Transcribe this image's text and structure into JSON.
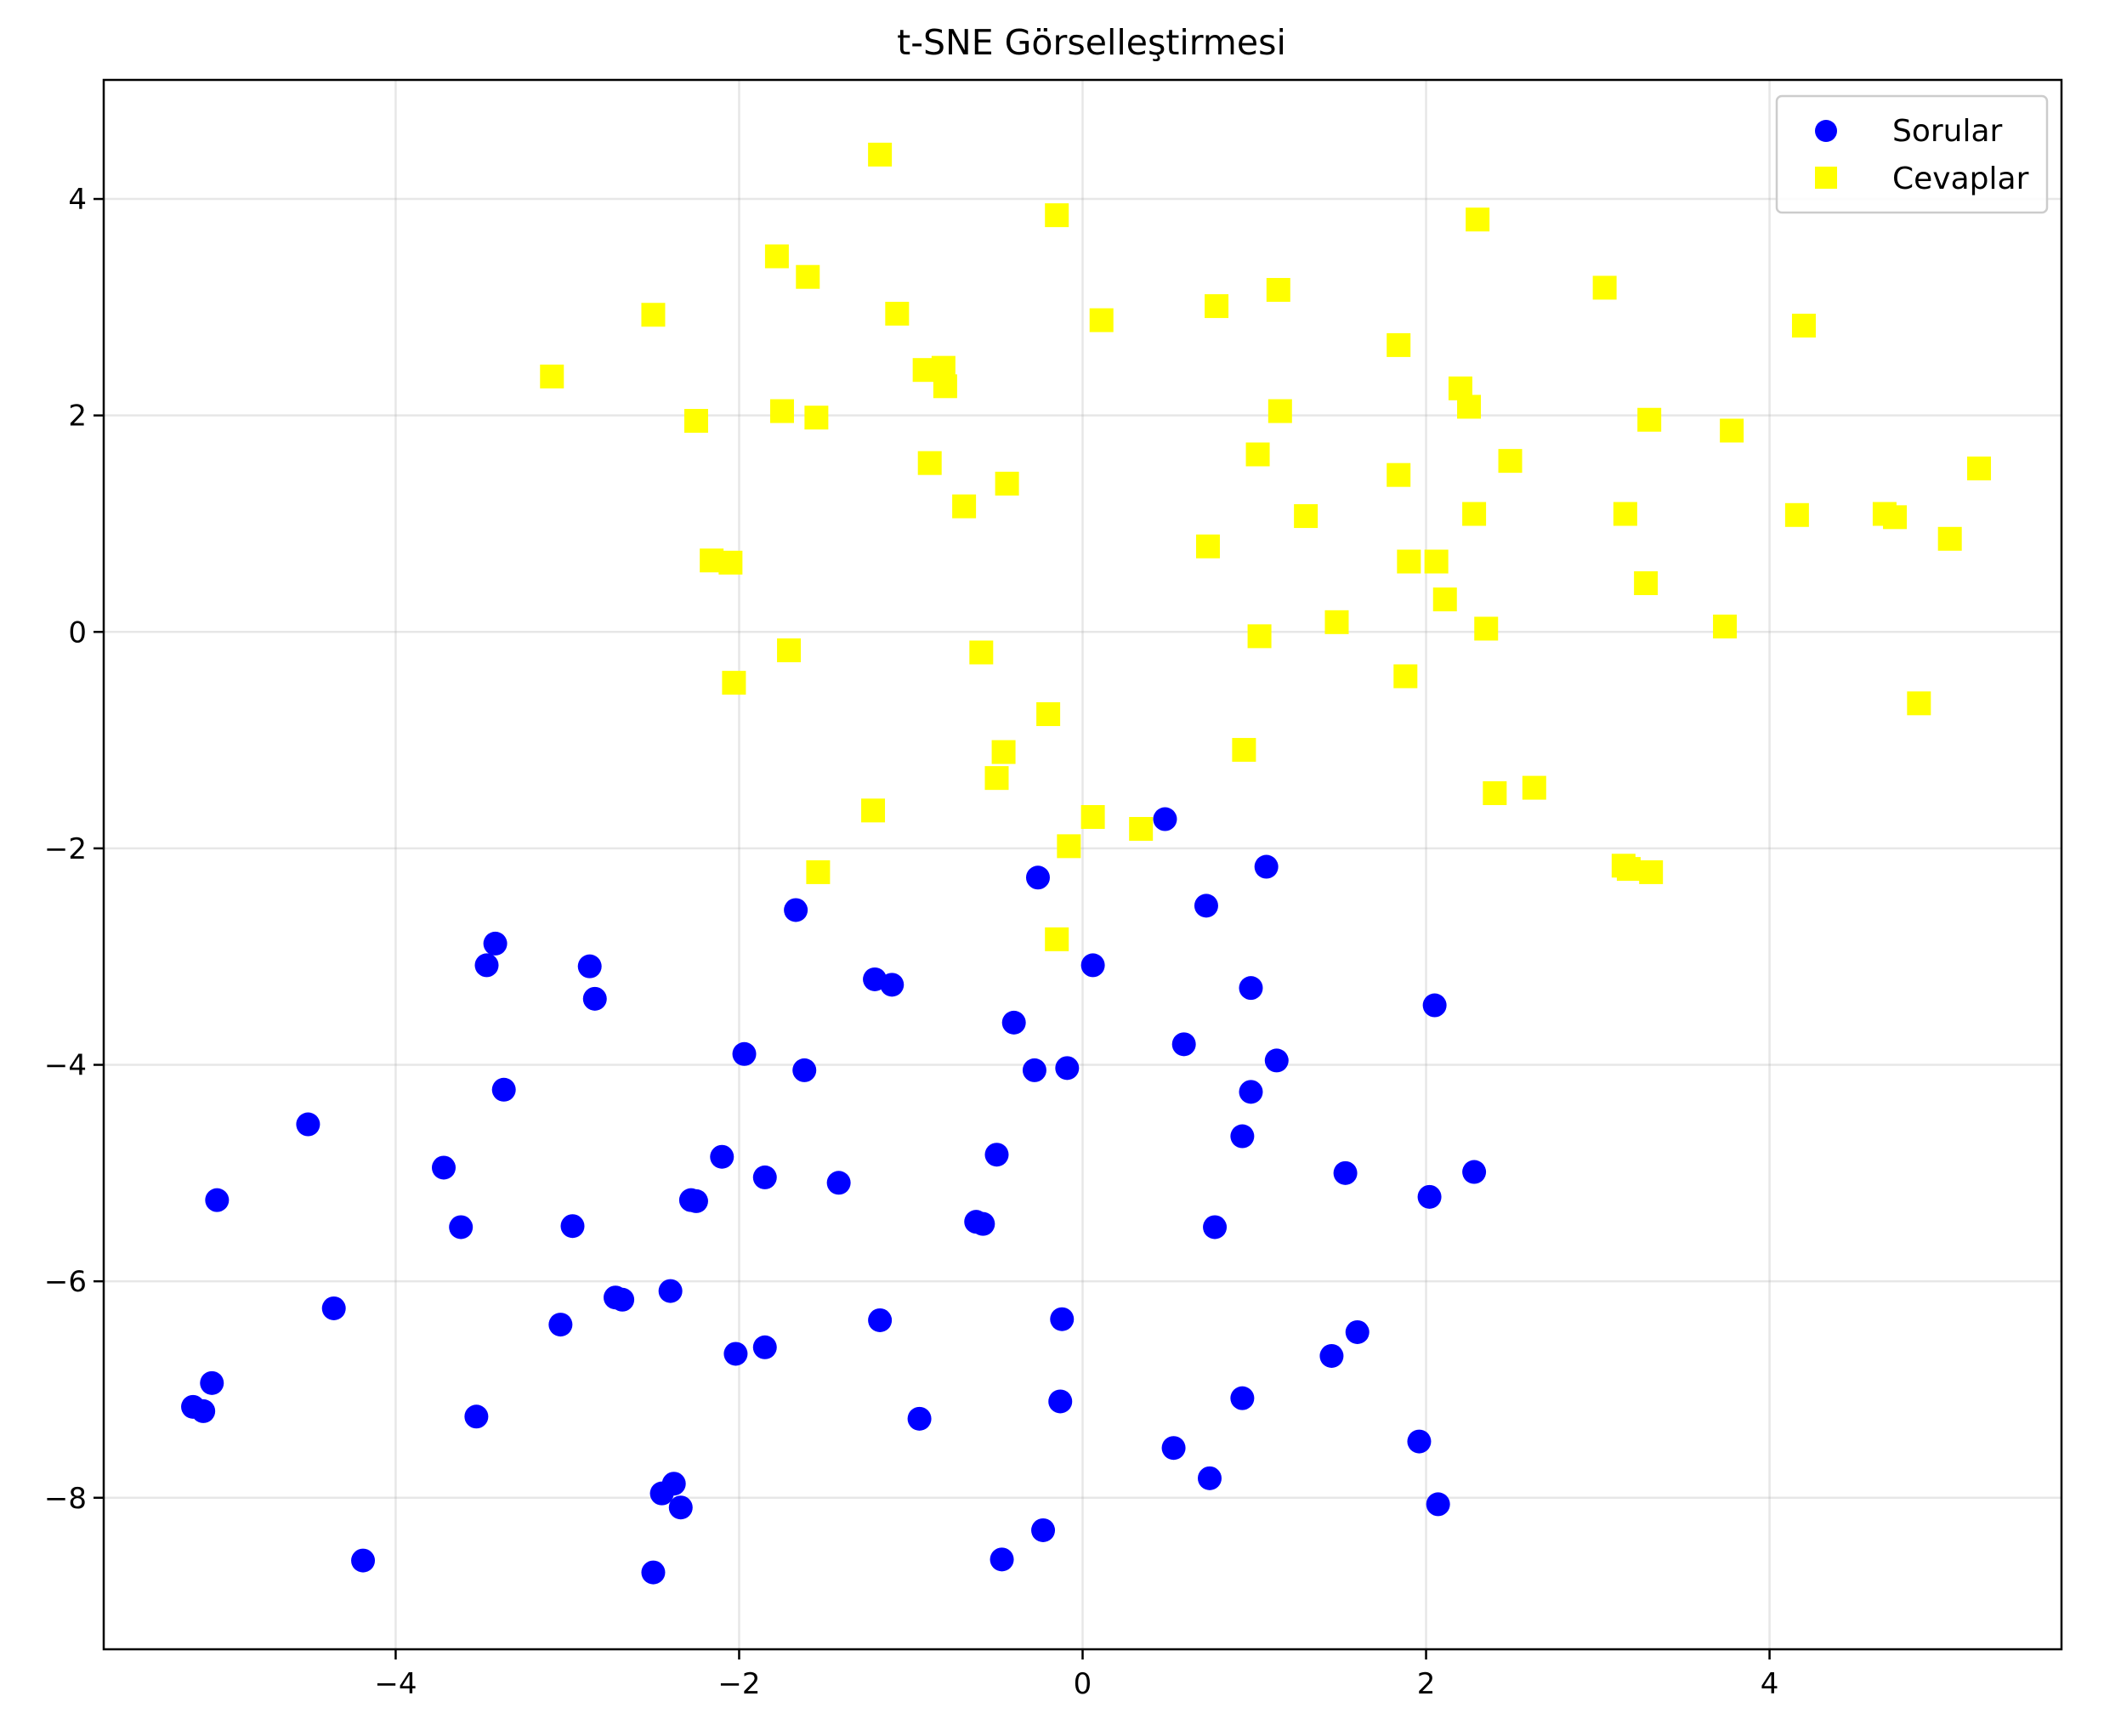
{
  "chart_data": {
    "type": "scatter",
    "title": "t-SNE Görselleştirmesi",
    "xlabel": "",
    "ylabel": "",
    "xlim": [
      -5.7,
      5.7
    ],
    "ylim": [
      -9.4,
      5.1
    ],
    "xticks": [
      -4,
      -2,
      0,
      2,
      4
    ],
    "yticks": [
      -8,
      -6,
      -4,
      -2,
      0,
      2,
      4
    ],
    "xtick_labels": [
      "−4",
      "−2",
      "0",
      "2",
      "4"
    ],
    "ytick_labels": [
      "−8",
      "−6",
      "−4",
      "−2",
      "0",
      "2",
      "4"
    ],
    "grid": true,
    "legend_position": "top-right",
    "series": [
      {
        "name": "Sorular",
        "marker": "circle",
        "color": "#0000ff",
        "points": [
          [
            0.48,
            -1.73
          ],
          [
            1.07,
            -2.17
          ],
          [
            -0.26,
            -2.27
          ],
          [
            0.72,
            -2.53
          ],
          [
            -1.67,
            -2.57
          ],
          [
            -3.42,
            -2.88
          ],
          [
            -3.47,
            -3.08
          ],
          [
            -2.87,
            -3.09
          ],
          [
            -2.84,
            -3.39
          ],
          [
            0.06,
            -3.08
          ],
          [
            -1.21,
            -3.21
          ],
          [
            -1.11,
            -3.26
          ],
          [
            0.98,
            -3.29
          ],
          [
            2.05,
            -3.45
          ],
          [
            -0.4,
            -3.61
          ],
          [
            0.59,
            -3.81
          ],
          [
            -1.97,
            -3.9
          ],
          [
            1.13,
            -3.96
          ],
          [
            -0.28,
            -4.05
          ],
          [
            -0.09,
            -4.03
          ],
          [
            -1.62,
            -4.05
          ],
          [
            -3.37,
            -4.23
          ],
          [
            0.98,
            -4.25
          ],
          [
            -4.51,
            -4.55
          ],
          [
            0.93,
            -4.66
          ],
          [
            -2.1,
            -4.85
          ],
          [
            -0.5,
            -4.83
          ],
          [
            -3.72,
            -4.95
          ],
          [
            -1.85,
            -5.04
          ],
          [
            -1.42,
            -5.09
          ],
          [
            1.53,
            -5.0
          ],
          [
            2.28,
            -4.99
          ],
          [
            -5.04,
            -5.25
          ],
          [
            -2.28,
            -5.25
          ],
          [
            -2.25,
            -5.26
          ],
          [
            2.02,
            -5.22
          ],
          [
            -0.62,
            -5.45
          ],
          [
            -0.58,
            -5.47
          ],
          [
            -3.62,
            -5.5
          ],
          [
            -2.97,
            -5.49
          ],
          [
            0.77,
            -5.5
          ],
          [
            -2.72,
            -6.15
          ],
          [
            -2.68,
            -6.17
          ],
          [
            -2.4,
            -6.09
          ],
          [
            -4.36,
            -6.25
          ],
          [
            -3.04,
            -6.4
          ],
          [
            -1.18,
            -6.36
          ],
          [
            -0.12,
            -6.35
          ],
          [
            1.6,
            -6.47
          ],
          [
            -1.85,
            -6.61
          ],
          [
            -2.02,
            -6.67
          ],
          [
            1.45,
            -6.69
          ],
          [
            -5.07,
            -6.94
          ],
          [
            -5.18,
            -7.16
          ],
          [
            -5.12,
            -7.2
          ],
          [
            -3.53,
            -7.25
          ],
          [
            -0.13,
            -7.11
          ],
          [
            0.93,
            -7.08
          ],
          [
            -0.95,
            -7.27
          ],
          [
            1.96,
            -7.48
          ],
          [
            0.53,
            -7.54
          ],
          [
            0.74,
            -7.82
          ],
          [
            -2.45,
            -7.96
          ],
          [
            -2.38,
            -7.87
          ],
          [
            -2.34,
            -8.09
          ],
          [
            2.07,
            -8.06
          ],
          [
            -0.23,
            -8.3
          ],
          [
            -0.47,
            -8.57
          ],
          [
            -4.19,
            -8.58
          ],
          [
            -2.5,
            -8.69
          ]
        ]
      },
      {
        "name": "Cevaplar",
        "marker": "square",
        "color": "#ffff00",
        "points": [
          [
            -1.18,
            4.41
          ],
          [
            -0.15,
            3.85
          ],
          [
            2.3,
            3.81
          ],
          [
            -1.78,
            3.47
          ],
          [
            -1.6,
            3.28
          ],
          [
            0.78,
            3.01
          ],
          [
            1.14,
            3.16
          ],
          [
            3.04,
            3.18
          ],
          [
            -2.5,
            2.93
          ],
          [
            -1.08,
            2.94
          ],
          [
            0.11,
            2.88
          ],
          [
            4.2,
            2.83
          ],
          [
            1.84,
            2.65
          ],
          [
            -3.09,
            2.36
          ],
          [
            -0.92,
            2.42
          ],
          [
            -0.81,
            2.44
          ],
          [
            -0.8,
            2.27
          ],
          [
            2.2,
            2.25
          ],
          [
            2.25,
            2.08
          ],
          [
            -1.75,
            2.04
          ],
          [
            -1.55,
            1.98
          ],
          [
            1.15,
            2.04
          ],
          [
            3.3,
            1.96
          ],
          [
            -2.25,
            1.95
          ],
          [
            3.78,
            1.86
          ],
          [
            1.02,
            1.64
          ],
          [
            2.49,
            1.58
          ],
          [
            -0.89,
            1.56
          ],
          [
            5.22,
            1.51
          ],
          [
            1.84,
            1.45
          ],
          [
            -0.44,
            1.37
          ],
          [
            -0.69,
            1.16
          ],
          [
            1.3,
            1.07
          ],
          [
            2.28,
            1.09
          ],
          [
            3.16,
            1.09
          ],
          [
            4.16,
            1.08
          ],
          [
            4.67,
            1.09
          ],
          [
            4.73,
            1.06
          ],
          [
            5.05,
            0.86
          ],
          [
            0.73,
            0.79
          ],
          [
            -2.16,
            0.66
          ],
          [
            -2.05,
            0.64
          ],
          [
            1.9,
            0.65
          ],
          [
            2.06,
            0.65
          ],
          [
            3.28,
            0.45
          ],
          [
            2.11,
            0.3
          ],
          [
            1.48,
            0.09
          ],
          [
            2.35,
            0.03
          ],
          [
            3.74,
            0.05
          ],
          [
            1.03,
            -0.04
          ],
          [
            -1.71,
            -0.17
          ],
          [
            -0.59,
            -0.19
          ],
          [
            1.88,
            -0.41
          ],
          [
            -2.03,
            -0.47
          ],
          [
            4.87,
            -0.66
          ],
          [
            -0.2,
            -0.76
          ],
          [
            0.94,
            -1.09
          ],
          [
            -0.46,
            -1.11
          ],
          [
            -0.5,
            -1.35
          ],
          [
            2.4,
            -1.49
          ],
          [
            2.63,
            -1.44
          ],
          [
            -1.22,
            -1.65
          ],
          [
            0.06,
            -1.71
          ],
          [
            0.34,
            -1.82
          ],
          [
            -0.08,
            -1.98
          ],
          [
            3.15,
            -2.16
          ],
          [
            3.18,
            -2.19
          ],
          [
            3.31,
            -2.22
          ],
          [
            -1.54,
            -2.22
          ],
          [
            -0.15,
            -2.84
          ]
        ]
      }
    ]
  }
}
